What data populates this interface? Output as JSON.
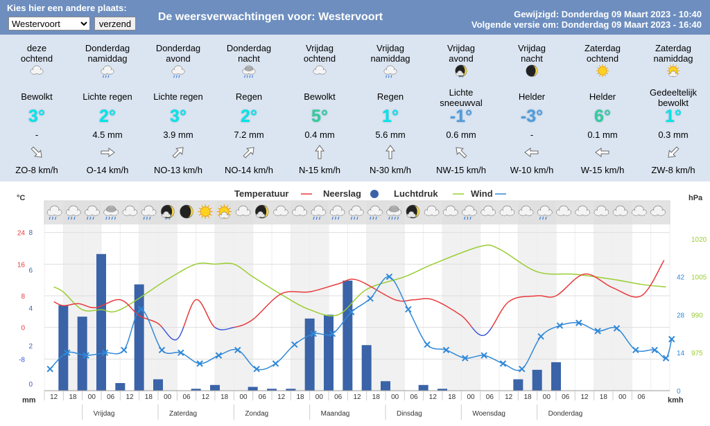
{
  "header": {
    "plaats_label": "Kies hier een andere plaats:",
    "location_value": "Westervoort",
    "submit_label": "verzend",
    "title": "De weersverwachtingen voor: Westervoort",
    "updated": "Gewijzigd: Donderdag 09 Maart 2023 - 10:40",
    "next_version": "Volgende versie om: Donderdag 09 Maart 2023 - 16:40"
  },
  "forecast": [
    {
      "period": "deze\nochtend",
      "icon": "cloud-icon",
      "condition": "Bewolkt",
      "temp": "3°",
      "precip": "-",
      "wind_dir_deg": 315,
      "wind": "ZO-8 km/h"
    },
    {
      "period": "Donderdag\nnamiddag",
      "icon": "rain-cloud-icon",
      "condition": "Lichte regen",
      "temp": "2°",
      "precip": "4.5 mm",
      "wind_dir_deg": 270,
      "wind": "O-14 km/h"
    },
    {
      "period": "Donderdag\navond",
      "icon": "rain-cloud-icon",
      "condition": "Lichte regen",
      "temp": "3°",
      "precip": "3.9 mm",
      "wind_dir_deg": 225,
      "wind": "NO-13 km/h"
    },
    {
      "period": "Donderdag\nnacht",
      "icon": "heavy-rain-cloud-icon",
      "condition": "Regen",
      "temp": "2°",
      "precip": "7.2 mm",
      "wind_dir_deg": 225,
      "wind": "NO-14 km/h"
    },
    {
      "period": "Vrijdag\nochtend",
      "icon": "cloud-icon",
      "condition": "Bewolkt",
      "temp": "5°",
      "precip": "0.4 mm",
      "wind_dir_deg": 180,
      "wind": "N-15 km/h"
    },
    {
      "period": "Vrijdag\nnamiddag",
      "icon": "rain-cloud-icon",
      "condition": "Regen",
      "temp": "1°",
      "precip": "5.6 mm",
      "wind_dir_deg": 180,
      "wind": "N-30 km/h"
    },
    {
      "period": "Vrijdag\navond",
      "icon": "moon-snow-icon",
      "condition": "Lichte\nsneeuwval",
      "temp": "-1°",
      "precip": "0.6 mm",
      "wind_dir_deg": 135,
      "wind": "NW-15 km/h"
    },
    {
      "period": "Vrijdag\nnacht",
      "icon": "moon-icon",
      "condition": "Helder",
      "temp": "-3°",
      "precip": "-",
      "wind_dir_deg": 90,
      "wind": "W-10 km/h"
    },
    {
      "period": "Zaterdag\nochtend",
      "icon": "sun-icon",
      "condition": "Helder",
      "temp": "6°",
      "precip": "0.1 mm",
      "wind_dir_deg": 90,
      "wind": "W-15 km/h"
    },
    {
      "period": "Zaterdag\nnamiddag",
      "icon": "sun-cloud-icon",
      "condition": "Gedeeltelijk\nbewolkt",
      "temp": "1°",
      "precip": "0.3 mm",
      "wind_dir_deg": 45,
      "wind": "ZW-8 km/h"
    }
  ],
  "chart_data": {
    "type": "line",
    "legend": [
      "Temperatuur",
      "Neerslag",
      "Luchtdruk",
      "Wind"
    ],
    "colors": {
      "temperature": "#e8393b",
      "precipitation": "#3a63a8",
      "pressure": "#9acd32",
      "wind": "#2f88d8",
      "temperature_cold": "#3b57d9"
    },
    "left_units": {
      "temperature": "°C",
      "precipitation": "mm"
    },
    "right_units": {
      "pressure": "hPa",
      "wind": "kmh"
    },
    "temp_ticks": [
      "24",
      "16",
      "8",
      "0",
      "-8"
    ],
    "precip_ticks": [
      "8",
      "6",
      "4",
      "2",
      "0"
    ],
    "pressure_ticks": [
      "1020",
      "1005",
      "990",
      "975"
    ],
    "wind_ticks": [
      "42",
      "28",
      "14",
      "0"
    ],
    "temp_range": [
      -16,
      32
    ],
    "precip_range": [
      0,
      10
    ],
    "pressure_range": [
      960,
      1035
    ],
    "wind_range": [
      0,
      70
    ],
    "x_hour_labels": [
      "12",
      "18",
      "00",
      "06",
      "12",
      "18",
      "00",
      "06",
      "12",
      "18",
      "00",
      "06",
      "12",
      "18",
      "00",
      "06",
      "12",
      "18",
      "00",
      "06",
      "12",
      "18",
      "00",
      "06",
      "12",
      "18",
      "00",
      "06",
      "12",
      "18",
      "00",
      "06"
    ],
    "day_labels": [
      "Vrijdag",
      "Zaterdag",
      "Zondag",
      "Maandag",
      "Dinsdag",
      "Woensdag",
      "Donderdag"
    ],
    "temperature": [
      6.5,
      5.5,
      6,
      5,
      7,
      3,
      1,
      -3,
      7,
      0,
      0,
      2,
      8.5,
      9,
      11,
      12,
      7,
      7,
      7,
      3,
      -2,
      6.5,
      8,
      8,
      13.5,
      10,
      8,
      17
    ],
    "temperature_x": [
      0.5,
      1,
      1.8,
      2.7,
      4,
      5,
      6,
      7,
      8,
      9,
      10,
      11,
      12.5,
      14,
      15.5,
      16.5,
      18.5,
      19.5,
      20.5,
      22,
      23.2,
      24.5,
      26,
      27,
      28.5,
      30,
      31.5,
      32.7
    ],
    "pressure": [
      1001,
      999,
      992,
      992,
      992,
      1004,
      1010,
      1010,
      1010,
      1005,
      998,
      992,
      990,
      1000,
      1005,
      1010,
      1017,
      1016,
      1007,
      1006,
      1004,
      1002,
      1001
    ],
    "pressure_x": [
      0.5,
      1,
      2,
      3,
      4,
      6.5,
      8,
      9,
      10,
      11,
      12.5,
      14,
      15.5,
      17,
      19,
      20.5,
      23,
      24,
      26,
      28,
      30,
      31.5,
      32.8
    ],
    "precipitation": [
      4.5,
      3.9,
      7.2,
      0.4,
      5.6,
      0.6,
      0.1,
      0.3,
      0.2,
      0.1,
      0.1,
      3.8,
      4.0,
      5.8,
      2.4,
      0.5,
      0.3,
      0.1,
      0.6,
      1.1,
      1.5
    ],
    "precipitation_x": [
      1,
      2,
      3,
      4,
      5,
      6,
      8,
      9,
      11,
      12,
      13,
      14,
      15,
      16,
      17,
      18,
      20,
      21,
      25,
      26,
      27
    ],
    "wind": [
      8,
      14,
      13,
      14,
      15,
      30,
      15,
      14,
      10,
      13,
      15,
      8,
      10,
      17,
      21,
      21,
      29,
      34,
      42,
      30,
      17,
      15,
      12,
      13,
      10,
      8,
      20,
      24,
      25,
      22,
      23,
      15,
      15,
      12,
      19
    ],
    "wind_x": [
      0.3,
      1.2,
      2.2,
      3.2,
      4.2,
      5.1,
      6.2,
      7.2,
      8.2,
      9.2,
      10.2,
      11.2,
      12.2,
      13.2,
      14.2,
      15.2,
      16.2,
      17.2,
      18.2,
      19.2,
      20.2,
      21.2,
      22.2,
      23.2,
      24.2,
      25.2,
      26.2,
      27.2,
      28.2,
      29.2,
      30.2,
      31.2,
      32.2,
      32.8,
      33.1
    ],
    "grid": true,
    "legend_position": "top-center"
  },
  "chart_icons": [
    "rain-cloud-icon",
    "rain-cloud-icon",
    "rain-cloud-icon",
    "heavy-rain-cloud-icon",
    "cloud-icon",
    "rain-cloud-icon",
    "moon-snow-icon",
    "moon-icon",
    "sun-icon",
    "sun-cloud-icon",
    "cloud-icon",
    "moon-cloud-icon",
    "cloud-icon",
    "cloud-icon",
    "rain-cloud-icon",
    "rain-cloud-icon",
    "rain-cloud-icon",
    "rain-cloud-icon",
    "heavy-rain-cloud-icon",
    "moon-cloud-icon",
    "cloud-icon",
    "cloud-icon",
    "rain-cloud-icon",
    "cloud-icon",
    "cloud-icon",
    "cloud-icon",
    "rain-cloud-icon",
    "cloud-icon",
    "cloud-icon",
    "cloud-icon",
    "cloud-icon",
    "cloud-icon",
    "cloud-icon"
  ]
}
